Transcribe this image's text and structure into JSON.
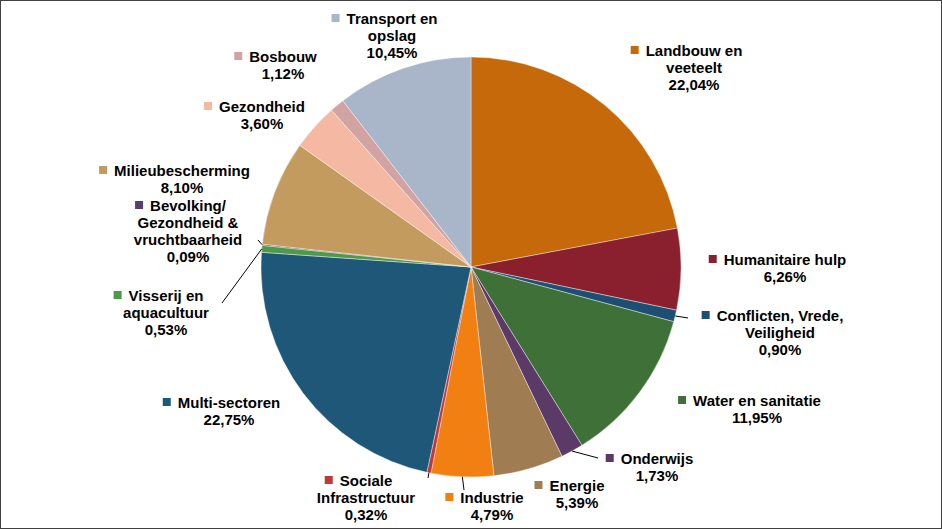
{
  "chart_data": {
    "type": "pie",
    "categories": [
      "Landbouw en veeteelt",
      "Humanitaire hulp",
      "Conflicten, Vrede, Veiligheid",
      "Water en sanitatie",
      "Onderwijs",
      "Energie",
      "Industrie",
      "Sociale Infrastructuur",
      "Multi-sectoren",
      "Visserij en aquacultuur",
      "Bevolking/Gezondheid & vruchtbaarheid",
      "Milieubescherming",
      "Gezondheid",
      "Bosbouw",
      "Transport en opslag"
    ],
    "values": [
      22.04,
      6.26,
      0.9,
      11.95,
      1.73,
      5.39,
      4.79,
      0.32,
      22.75,
      0.53,
      0.09,
      8.1,
      3.6,
      1.12,
      10.45
    ],
    "value_labels": [
      "22,04%",
      "6,26%",
      "0,90%",
      "11,95%",
      "1,73%",
      "5,39%",
      "4,79%",
      "0,32%",
      "22,75%",
      "0,53%",
      "0,09%",
      "8,10%",
      "3,60%",
      "1,12%",
      "10,45%"
    ],
    "colors": [
      "#c5690a",
      "#8a1f2d",
      "#1d4f72",
      "#3f7037",
      "#5c3a67",
      "#a07c52",
      "#f17f12",
      "#c0383a",
      "#1f5779",
      "#4f9a4a",
      "#5a3c6e",
      "#c49b5e",
      "#f5b9a3",
      "#d1a3a3",
      "#a9b5c8"
    ],
    "data_labels": true
  }
}
